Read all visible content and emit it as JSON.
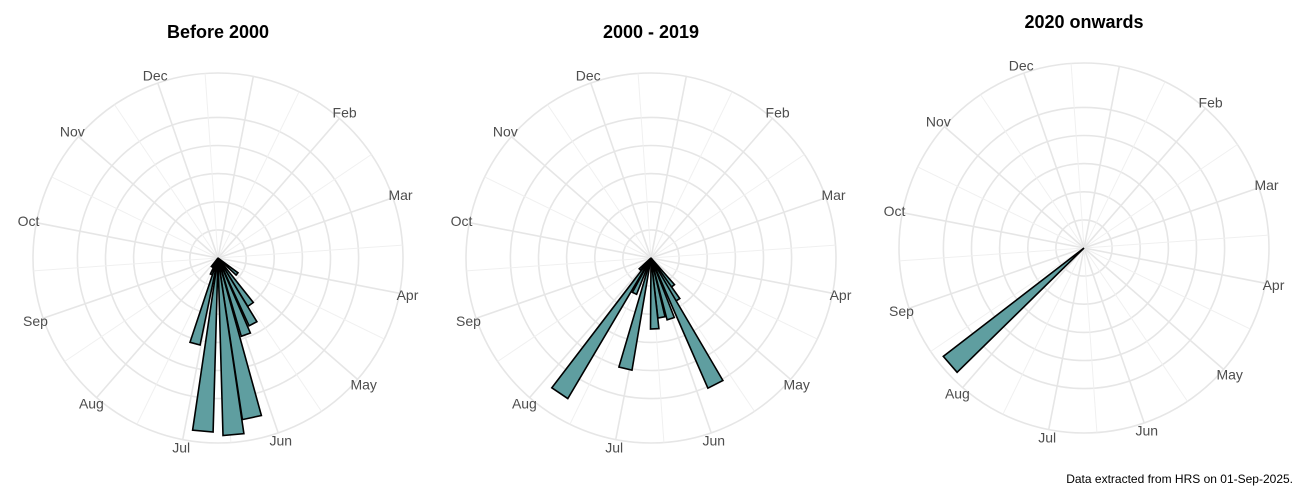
{
  "caption": "Data extracted from HRS on 01-Sep-2025.",
  "colors": {
    "bar_fill": "#5F9EA0",
    "bar_stroke": "#000000",
    "grid": "#e6e6e6",
    "label": "#4d4d4d"
  },
  "chart_data": [
    {
      "type": "polar-bar",
      "title": "Before 2000",
      "month_labels": [
        "Jan",
        "Feb",
        "Mar",
        "Apr",
        "May",
        "Jun",
        "Jul",
        "Aug",
        "Sep",
        "Oct",
        "Nov",
        "Dec"
      ],
      "grid": true,
      "bars": [
        {
          "angle_deg": 130,
          "value": 0.14
        },
        {
          "angle_deg": 145,
          "value": 0.32
        },
        {
          "angle_deg": 152,
          "value": 0.42
        },
        {
          "angle_deg": 160,
          "value": 0.46
        },
        {
          "angle_deg": 168,
          "value": 0.92
        },
        {
          "angle_deg": 175,
          "value": 1.0
        },
        {
          "angle_deg": 185,
          "value": 0.98
        },
        {
          "angle_deg": 195,
          "value": 0.5
        },
        {
          "angle_deg": 202,
          "value": 0.1
        },
        {
          "angle_deg": 215,
          "value": 0.06
        }
      ]
    },
    {
      "type": "polar-bar",
      "title": "2000 - 2019",
      "month_labels": [
        "Jan",
        "Feb",
        "Mar",
        "Apr",
        "May",
        "Jun",
        "Jul",
        "Aug",
        "Sep",
        "Oct",
        "Nov",
        "Dec"
      ],
      "grid": true,
      "bars": [
        {
          "angle_deg": 142,
          "value": 0.2
        },
        {
          "angle_deg": 148,
          "value": 0.28
        },
        {
          "angle_deg": 153,
          "value": 0.8
        },
        {
          "angle_deg": 162,
          "value": 0.36
        },
        {
          "angle_deg": 170,
          "value": 0.34
        },
        {
          "angle_deg": 177,
          "value": 0.4
        },
        {
          "angle_deg": 193,
          "value": 0.64
        },
        {
          "angle_deg": 205,
          "value": 0.22
        },
        {
          "angle_deg": 214,
          "value": 0.92
        },
        {
          "angle_deg": 224,
          "value": 0.09
        }
      ]
    },
    {
      "type": "polar-bar",
      "title": "2020 onwards",
      "month_labels": [
        "Jan",
        "Feb",
        "Mar",
        "Apr",
        "May",
        "Jun",
        "Jul",
        "Aug",
        "Sep",
        "Oct",
        "Nov",
        "Dec"
      ],
      "grid": true,
      "bars": [
        {
          "angle_deg": 229,
          "value": 1.0
        }
      ]
    }
  ]
}
